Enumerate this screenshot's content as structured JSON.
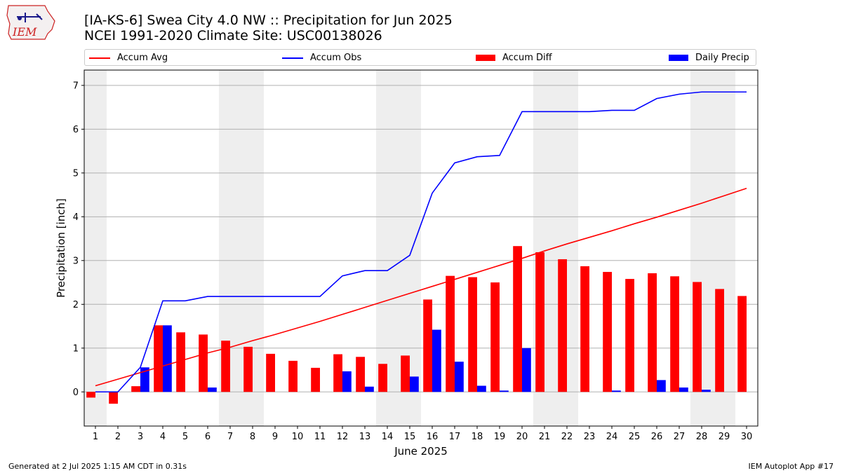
{
  "title_line1": "[IA-KS-6] Swea City 4.0 NW :: Precipitation for Jun 2025",
  "title_line2": "NCEI 1991-2020 Climate Site: USC00138026",
  "logo_text": "IEM",
  "footer_left": "Generated at 2 Jul 2025 1:15 AM CDT in 0.31s",
  "footer_right": "IEM Autoplot App #17",
  "colors": {
    "accum_avg": "#ff0000",
    "accum_obs": "#0000ff",
    "accum_diff": "#ff0000",
    "daily_precip": "#0000ff",
    "weekend_shade": "#eeeeee",
    "grid": "#b0b0b0"
  },
  "chart_data": {
    "type": "bar",
    "xlabel": "June 2025",
    "ylabel": "Precipitation [inch]",
    "ylim": [
      -0.78,
      7.35
    ],
    "yticks": [
      0,
      1,
      2,
      3,
      4,
      5,
      6,
      7
    ],
    "grid": "horizontal",
    "legend_position": "top",
    "x": [
      1,
      2,
      3,
      4,
      5,
      6,
      7,
      8,
      9,
      10,
      11,
      12,
      13,
      14,
      15,
      16,
      17,
      18,
      19,
      20,
      21,
      22,
      23,
      24,
      25,
      26,
      27,
      28,
      29,
      30
    ],
    "weekend_shading": [
      [
        1,
        1
      ],
      [
        7,
        8
      ],
      [
        14,
        15
      ],
      [
        21,
        22
      ],
      [
        28,
        29
      ]
    ],
    "series": [
      {
        "name": "Accum Avg",
        "kind": "line",
        "values": [
          0.14,
          0.29,
          0.44,
          0.59,
          0.74,
          0.89,
          1.02,
          1.17,
          1.31,
          1.46,
          1.61,
          1.77,
          1.93,
          2.09,
          2.25,
          2.41,
          2.57,
          2.73,
          2.89,
          3.05,
          3.22,
          3.38,
          3.53,
          3.68,
          3.84,
          3.99,
          4.15,
          4.31,
          4.48,
          4.65
        ]
      },
      {
        "name": "Accum Obs",
        "kind": "line",
        "values": [
          0.0,
          0.0,
          0.56,
          2.08,
          2.08,
          2.18,
          2.18,
          2.18,
          2.18,
          2.18,
          2.18,
          2.65,
          2.77,
          2.77,
          3.12,
          4.54,
          5.23,
          5.37,
          5.4,
          6.4,
          6.4,
          6.4,
          6.4,
          6.43,
          6.43,
          6.7,
          6.8,
          6.85,
          6.85,
          6.85
        ]
      },
      {
        "name": "Accum Diff",
        "kind": "bar",
        "values": [
          -0.13,
          -0.27,
          0.13,
          1.52,
          1.36,
          1.31,
          1.17,
          1.03,
          0.87,
          0.71,
          0.55,
          0.86,
          0.8,
          0.64,
          0.83,
          2.11,
          2.65,
          2.62,
          2.5,
          3.33,
          3.19,
          3.03,
          2.87,
          2.74,
          2.58,
          2.71,
          2.64,
          2.51,
          2.35,
          2.19
        ]
      },
      {
        "name": "Daily Precip",
        "kind": "bar",
        "values": [
          0,
          0,
          0.56,
          1.52,
          0,
          0.1,
          0,
          0,
          0,
          0,
          0,
          0.47,
          0.12,
          0,
          0.35,
          1.42,
          0.69,
          0.14,
          0.03,
          1.0,
          0,
          0,
          0,
          0.03,
          0,
          0.27,
          0.1,
          0.05,
          0,
          0
        ]
      }
    ]
  }
}
